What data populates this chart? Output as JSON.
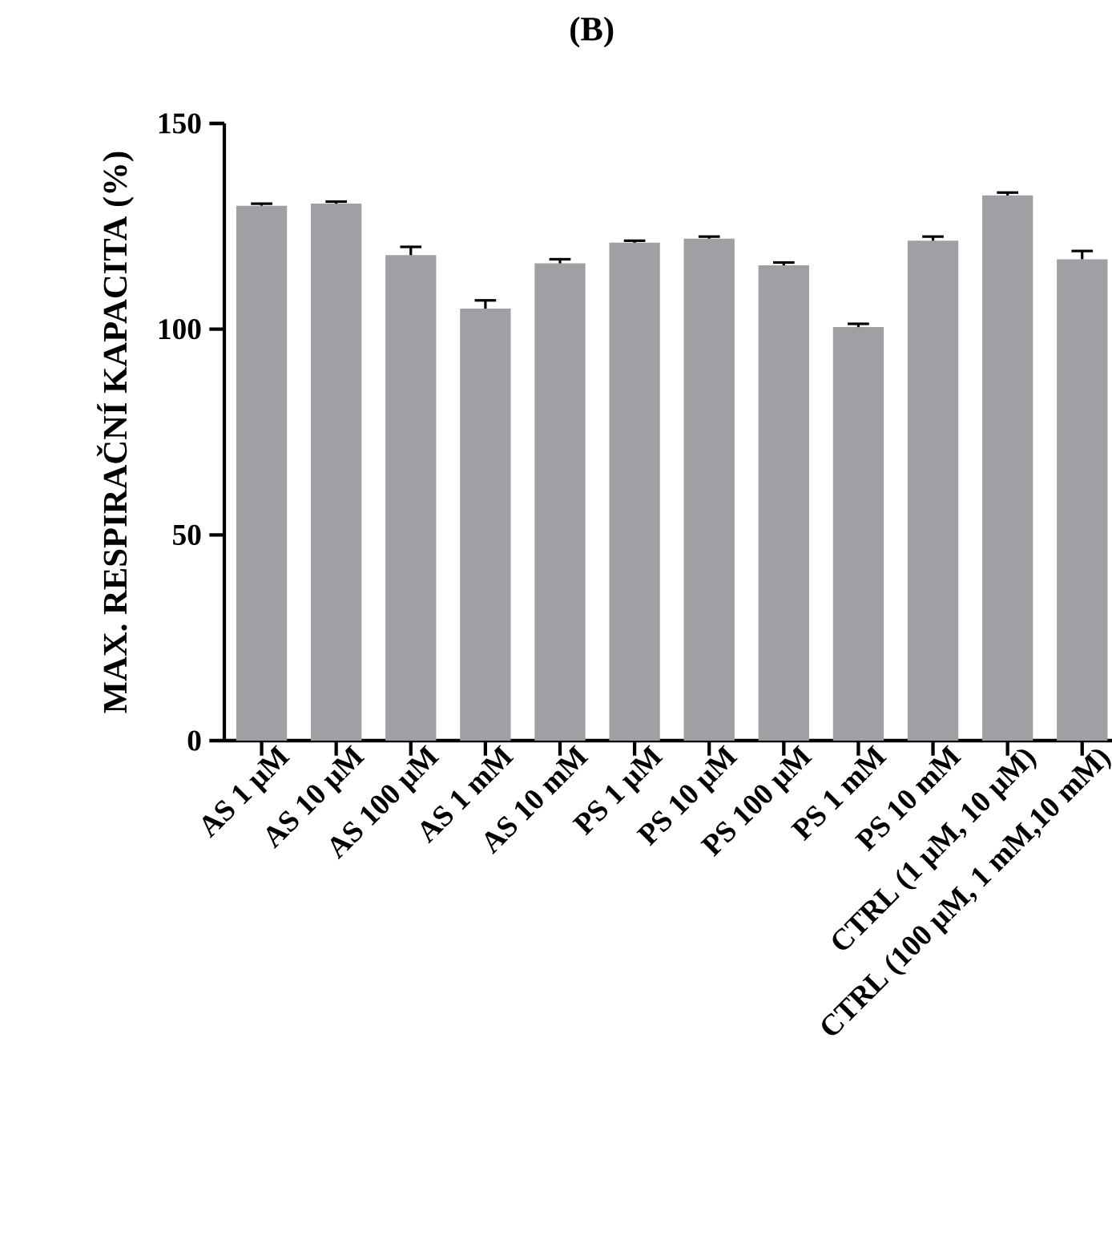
{
  "chart_data": {
    "type": "bar",
    "title": "(B)",
    "ylabel": "MAX. RESPIRAČNÍ KAPACITA (%)",
    "categories": [
      "AS 1 µM",
      "AS 10 µM",
      "AS 100 µM",
      "AS 1 mM",
      "AS 10 mM",
      "PS 1 µM",
      "PS 10 µM",
      "PS 100 µM",
      "PS 1 mM",
      "PS 10 mM",
      "CTRL (1 µM, 10 µM)",
      "CTRL (100 µM, 1 mM,10 mM)"
    ],
    "values": [
      130,
      130.5,
      118,
      105,
      116,
      121,
      122,
      115.5,
      100.5,
      121.5,
      132.5,
      117
    ],
    "errors": [
      0.5,
      0.5,
      2,
      2,
      1,
      0.5,
      0.5,
      0.7,
      0.8,
      1,
      0.7,
      2
    ],
    "color": "#a0a0a4",
    "ylim": [
      0,
      150
    ],
    "yticks": [
      0,
      50,
      100,
      150
    ]
  }
}
